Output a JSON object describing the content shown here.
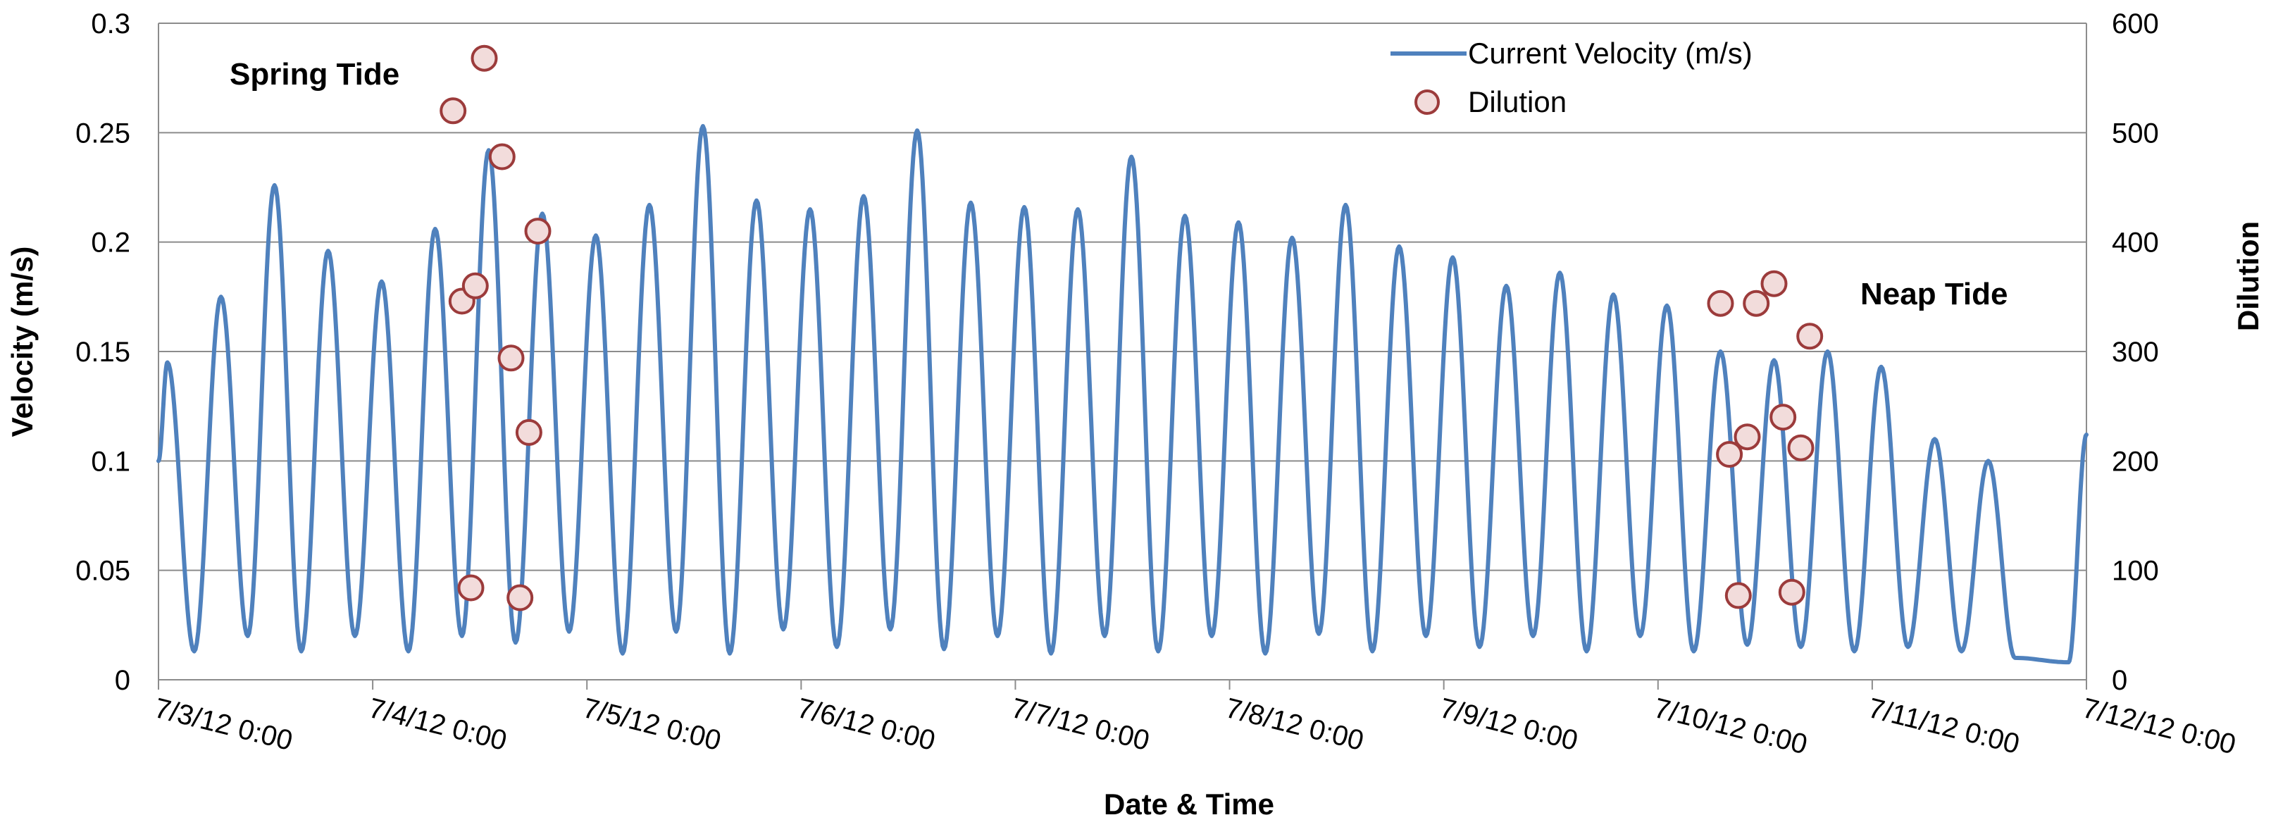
{
  "chart_data": {
    "type": "line",
    "xlabel": "Date & Time",
    "ylabel": "Velocity (m/s)",
    "y2label": "Dilution",
    "ylim": [
      0,
      0.3
    ],
    "y2lim": [
      0,
      600
    ],
    "xlim": [
      "7/3/12 0:00",
      "7/12/12 0:00"
    ],
    "x_tick_labels": [
      "7/3/12 0:00",
      "7/4/12 0:00",
      "7/5/12 0:00",
      "7/6/12 0:00",
      "7/7/12 0:00",
      "7/8/12 0:00",
      "7/9/12 0:00",
      "7/10/12 0:00",
      "7/11/12 0:00",
      "7/12/12 0:00"
    ],
    "y_tick_labels": [
      "0",
      "0.05",
      "0.1",
      "0.15",
      "0.2",
      "0.25",
      "0.3"
    ],
    "y2_tick_labels": [
      "0",
      "100",
      "200",
      "300",
      "400",
      "500",
      "600"
    ],
    "grid": true,
    "legend_position": "top-right",
    "annotations": [
      "Spring Tide",
      "Neap Tide"
    ],
    "series": [
      {
        "name": "Current Velocity (m/s)",
        "axis": "left",
        "color": "#4f81bd",
        "peaks": [
          {
            "t": "7/3/12 1:00",
            "v": 0.145
          },
          {
            "t": "7/3/12 7:00",
            "v": 0.175
          },
          {
            "t": "7/3/12 13:00",
            "v": 0.226
          },
          {
            "t": "7/3/12 19:00",
            "v": 0.196
          },
          {
            "t": "7/4/12 1:00",
            "v": 0.182
          },
          {
            "t": "7/4/12 7:00",
            "v": 0.206
          },
          {
            "t": "7/4/12 13:00",
            "v": 0.242
          },
          {
            "t": "7/4/12 19:00",
            "v": 0.213
          },
          {
            "t": "7/5/12 1:00",
            "v": 0.203
          },
          {
            "t": "7/5/12 7:00",
            "v": 0.217
          },
          {
            "t": "7/5/12 13:00",
            "v": 0.253
          },
          {
            "t": "7/5/12 19:00",
            "v": 0.219
          },
          {
            "t": "7/6/12 1:00",
            "v": 0.215
          },
          {
            "t": "7/6/12 7:00",
            "v": 0.221
          },
          {
            "t": "7/6/12 13:00",
            "v": 0.251
          },
          {
            "t": "7/6/12 19:00",
            "v": 0.218
          },
          {
            "t": "7/7/12 1:00",
            "v": 0.216
          },
          {
            "t": "7/7/12 7:00",
            "v": 0.215
          },
          {
            "t": "7/7/12 13:00",
            "v": 0.239
          },
          {
            "t": "7/7/12 19:00",
            "v": 0.212
          },
          {
            "t": "7/8/12 1:00",
            "v": 0.209
          },
          {
            "t": "7/8/12 7:00",
            "v": 0.202
          },
          {
            "t": "7/8/12 13:00",
            "v": 0.217
          },
          {
            "t": "7/8/12 19:00",
            "v": 0.198
          },
          {
            "t": "7/9/12 1:00",
            "v": 0.193
          },
          {
            "t": "7/9/12 7:00",
            "v": 0.18
          },
          {
            "t": "7/9/12 13:00",
            "v": 0.186
          },
          {
            "t": "7/9/12 19:00",
            "v": 0.176
          },
          {
            "t": "7/10/12 1:00",
            "v": 0.171
          },
          {
            "t": "7/10/12 7:00",
            "v": 0.15
          },
          {
            "t": "7/10/12 13:00",
            "v": 0.146
          },
          {
            "t": "7/10/12 19:00",
            "v": 0.15
          },
          {
            "t": "7/11/12 1:00",
            "v": 0.143
          },
          {
            "t": "7/11/12 7:00",
            "v": 0.11
          },
          {
            "t": "7/11/12 13:00",
            "v": 0.1
          }
        ],
        "troughs": [
          {
            "t": "7/3/12 4:00",
            "v": 0.013
          },
          {
            "t": "7/3/12 10:00",
            "v": 0.02
          },
          {
            "t": "7/3/12 16:00",
            "v": 0.013
          },
          {
            "t": "7/3/12 22:00",
            "v": 0.02
          },
          {
            "t": "7/4/12 4:00",
            "v": 0.013
          },
          {
            "t": "7/4/12 10:00",
            "v": 0.02
          },
          {
            "t": "7/4/12 16:00",
            "v": 0.017
          },
          {
            "t": "7/4/12 22:00",
            "v": 0.022
          },
          {
            "t": "7/5/12 4:00",
            "v": 0.012
          },
          {
            "t": "7/5/12 10:00",
            "v": 0.022
          },
          {
            "t": "7/5/12 16:00",
            "v": 0.012
          },
          {
            "t": "7/5/12 22:00",
            "v": 0.023
          },
          {
            "t": "7/6/12 4:00",
            "v": 0.015
          },
          {
            "t": "7/6/12 10:00",
            "v": 0.023
          },
          {
            "t": "7/6/12 16:00",
            "v": 0.014
          },
          {
            "t": "7/6/12 22:00",
            "v": 0.02
          },
          {
            "t": "7/7/12 4:00",
            "v": 0.012
          },
          {
            "t": "7/7/12 10:00",
            "v": 0.02
          },
          {
            "t": "7/7/12 16:00",
            "v": 0.013
          },
          {
            "t": "7/7/12 22:00",
            "v": 0.02
          },
          {
            "t": "7/8/12 4:00",
            "v": 0.012
          },
          {
            "t": "7/8/12 10:00",
            "v": 0.021
          },
          {
            "t": "7/8/12 16:00",
            "v": 0.013
          },
          {
            "t": "7/8/12 22:00",
            "v": 0.02
          },
          {
            "t": "7/9/12 4:00",
            "v": 0.015
          },
          {
            "t": "7/9/12 10:00",
            "v": 0.02
          },
          {
            "t": "7/9/12 16:00",
            "v": 0.013
          },
          {
            "t": "7/9/12 22:00",
            "v": 0.02
          },
          {
            "t": "7/10/12 4:00",
            "v": 0.013
          },
          {
            "t": "7/10/12 10:00",
            "v": 0.016
          },
          {
            "t": "7/10/12 16:00",
            "v": 0.015
          },
          {
            "t": "7/10/12 22:00",
            "v": 0.013
          },
          {
            "t": "7/11/12 4:00",
            "v": 0.015
          },
          {
            "t": "7/11/12 10:00",
            "v": 0.013
          },
          {
            "t": "7/11/12 16:00",
            "v": 0.01
          },
          {
            "t": "7/11/12 22:00",
            "v": 0.008
          }
        ],
        "start": {
          "t": "7/3/12 0:00",
          "v": 0.1
        },
        "end": {
          "t": "7/12/12 0:00",
          "v": 0.112
        }
      },
      {
        "name": "Dilution",
        "axis": "right",
        "marker_fill": "#f2dcdb",
        "marker_stroke": "#9c3b3b",
        "points": [
          {
            "t": "7/4/12 9:00",
            "y": 520
          },
          {
            "t": "7/4/12 10:00",
            "y": 346
          },
          {
            "t": "7/4/12 11:00",
            "y": 84
          },
          {
            "t": "7/4/12 11:30",
            "y": 360
          },
          {
            "t": "7/4/12 12:30",
            "y": 568
          },
          {
            "t": "7/4/12 14:30",
            "y": 478
          },
          {
            "t": "7/4/12 15:30",
            "y": 294
          },
          {
            "t": "7/4/12 16:30",
            "y": 75
          },
          {
            "t": "7/4/12 17:30",
            "y": 226
          },
          {
            "t": "7/4/12 18:30",
            "y": 410
          },
          {
            "t": "7/10/12 7:00",
            "y": 344
          },
          {
            "t": "7/10/12 8:00",
            "y": 206
          },
          {
            "t": "7/10/12 9:00",
            "y": 77
          },
          {
            "t": "7/10/12 10:00",
            "y": 222
          },
          {
            "t": "7/10/12 11:00",
            "y": 344
          },
          {
            "t": "7/10/12 13:00",
            "y": 362
          },
          {
            "t": "7/10/12 14:00",
            "y": 240
          },
          {
            "t": "7/10/12 15:00",
            "y": 80
          },
          {
            "t": "7/10/12 16:00",
            "y": 212
          },
          {
            "t": "7/10/12 17:00",
            "y": 314
          }
        ]
      }
    ]
  }
}
